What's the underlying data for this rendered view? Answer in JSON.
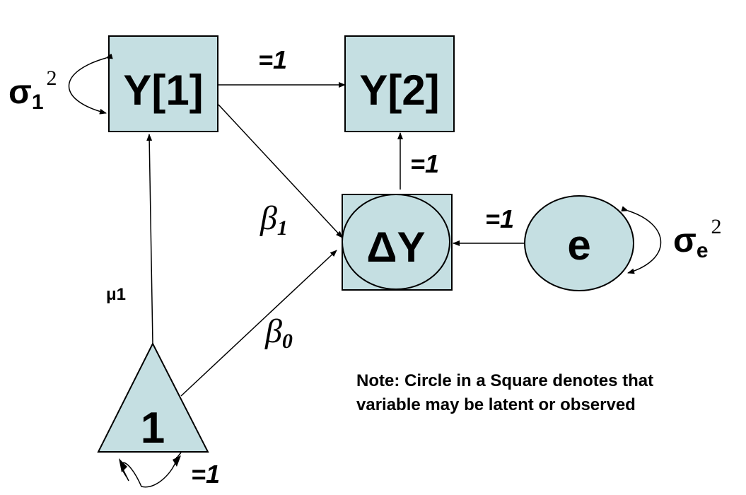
{
  "nodes": {
    "y1": "Y[1]",
    "y2": "Y[2]",
    "dy": "ΔY",
    "e": "e",
    "one": "1"
  },
  "paths": {
    "y1_to_y2": "=1",
    "dy_to_y2": "=1",
    "e_to_dy": "=1",
    "one_variance": "=1",
    "mu": "μ1",
    "beta1": {
      "symbol": "β",
      "sub": "1"
    },
    "beta0": {
      "symbol": "β",
      "sub": "0"
    }
  },
  "variances": {
    "sigma1": {
      "symbol": "σ",
      "sub": "1",
      "sup": "2"
    },
    "sigmae": {
      "symbol": "σ",
      "sub": "e",
      "sup": "2"
    }
  },
  "note": {
    "line1": "Note: Circle in a Square denotes that",
    "line2": "variable may be latent or observed"
  },
  "colors": {
    "node_fill": "#c5dfe2",
    "stroke": "#000000"
  }
}
